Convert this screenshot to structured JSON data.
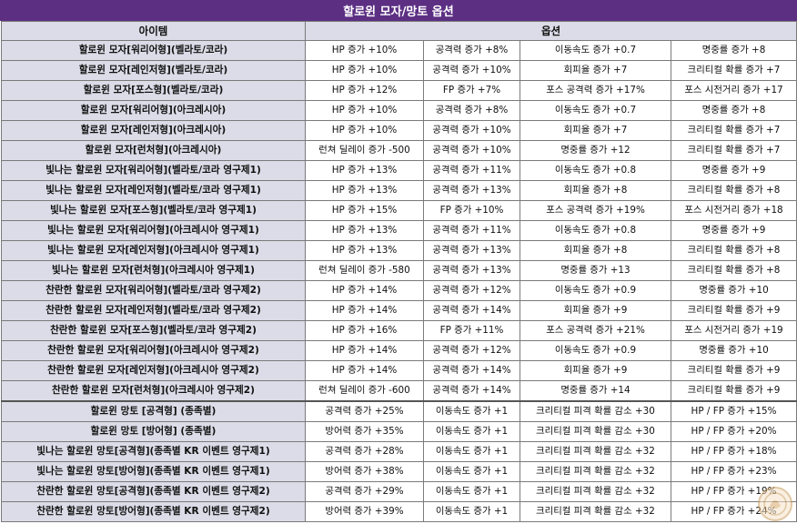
{
  "title": "할로윈 모자/망토 옵션",
  "headers": {
    "item": "아이템",
    "options": "옵션"
  },
  "colors": {
    "title_bg": "#5c2f83",
    "header_bg": "#dcdce8",
    "border": "#7a7a7a"
  },
  "watermark_icon": "stamp-logo",
  "rows": [
    {
      "item": "할로윈 모자[워리어형](벨라토/코라)",
      "options": [
        "HP 증가 +10%",
        "공격력 증가 +8%",
        "이동속도 증가 +0.7",
        "명중률 증가 +8"
      ]
    },
    {
      "item": "할로윈 모자[레인저형](벨라토/코라)",
      "options": [
        "HP 증가 +10%",
        "공격력 증가 +10%",
        "회피율 증가 +7",
        "크리티컬 확률 증가 +7"
      ]
    },
    {
      "item": "할로윈 모자[포스형](벨라토/코라)",
      "options": [
        "HP 증가 +12%",
        "FP 증가 +7%",
        "포스 공격력 증가 +17%",
        "포스 시전거리 증가 +17"
      ]
    },
    {
      "item": "할로윈 모자[워리어형](아크레시아)",
      "options": [
        "HP 증가 +10%",
        "공격력 증가 +8%",
        "이동속도 증가 +0.7",
        "명중률 증가 +8"
      ]
    },
    {
      "item": "할로윈 모자[레인저형](아크레시아)",
      "options": [
        "HP 증가 +10%",
        "공격력 증가 +10%",
        "회피율 증가 +7",
        "크리티컬 확률 증가 +7"
      ]
    },
    {
      "item": "할로윈 모자[런처형](아크레시아)",
      "options": [
        "런쳐 딜레이 증가 -500",
        "공격력 증가 +10%",
        "명중률 증가 +12",
        "크리티컬 확률 증가 +7"
      ]
    },
    {
      "item": "빛나는 할로윈 모자[워리어형](벨라토/코라 영구제1)",
      "options": [
        "HP 증가 +13%",
        "공격력 증가 +11%",
        "이동속도 증가 +0.8",
        "명중률 증가 +9"
      ]
    },
    {
      "item": "빛나는 할로윈 모자[레인저형](벨라토/코라 영구제1)",
      "options": [
        "HP 증가 +13%",
        "공격력 증가 +13%",
        "회피율 증가 +8",
        "크리티컬 확률 증가 +8"
      ]
    },
    {
      "item": "빛나는 할로윈 모자[포스형](벨라토/코라 영구제1)",
      "options": [
        "HP 증가 +15%",
        "FP 증가 +10%",
        "포스 공격력 증가 +19%",
        "포스 시전거리 증가 +18"
      ]
    },
    {
      "item": "빛나는 할로윈 모자[워리어형](아크레시아 영구제1)",
      "options": [
        "HP 증가 +13%",
        "공격력 증가 +11%",
        "이동속도 증가 +0.8",
        "명중률 증가 +9"
      ]
    },
    {
      "item": "빛나는 할로윈 모자[레인저형](아크레시아 영구제1)",
      "options": [
        "HP 증가 +13%",
        "공격력 증가 +13%",
        "회피율 증가 +8",
        "크리티컬 확률 증가 +8"
      ]
    },
    {
      "item": "빛나는 할로윈 모자[런처형](아크레시아 영구제1)",
      "options": [
        "런쳐 딜레이 증가 -580",
        "공격력 증가 +13%",
        "명중률 증가 +13",
        "크리티컬 확률 증가 +8"
      ]
    },
    {
      "item": "찬란한 할로윈 모자[워리어형](벨라토/코라 영구제2)",
      "options": [
        "HP 증가 +14%",
        "공격력 증가 +12%",
        "이동속도 증가 +0.9",
        "명중률 증가 +10"
      ]
    },
    {
      "item": "찬란한 할로윈 모자[레인저형](벨라토/코라 영구제2)",
      "options": [
        "HP 증가 +14%",
        "공격력 증가 +14%",
        "회피율 증가 +9",
        "크리티컬 확률 증가 +9"
      ]
    },
    {
      "item": "찬란한 할로윈 모자[포스형](벨라토/코라 영구제2)",
      "options": [
        "HP 증가 +16%",
        "FP 증가 +11%",
        "포스 공격력 증가 +21%",
        "포스 시전거리 증가 +19"
      ]
    },
    {
      "item": "찬란한 할로윈 모자[워리어형](아크레시아 영구제2)",
      "options": [
        "HP 증가 +14%",
        "공격력 증가 +12%",
        "이동속도 증가 +0.9",
        "명중률 증가 +10"
      ]
    },
    {
      "item": "찬란한 할로윈 모자[레인저형](아크레시아 영구제2)",
      "options": [
        "HP 증가 +14%",
        "공격력 증가 +14%",
        "회피율 증가 +9",
        "크리티컬 확률 증가 +9"
      ]
    },
    {
      "item": "찬란한 할로윈 모자[런처형](아크레시아 영구제2)",
      "options": [
        "런쳐 딜레이 증가 -600",
        "공격력 증가 +14%",
        "명중률 증가 +14",
        "크리티컬 확률 증가 +9"
      ]
    },
    {
      "item": "할로윈 망토 [공격형] (종족별)",
      "options": [
        "공격력 증가 +25%",
        "이동속도 증가 +1",
        "크리티컬 피격 확률 감소 +30",
        "HP / FP 증가 +15%"
      ]
    },
    {
      "item": "할로윈 망토 [방어형] (종족별)",
      "options": [
        "방어력 증가 +35%",
        "이동속도 증가 +1",
        "크리티컬 피격 확률 감소 +30",
        "HP / FP 증가 +20%"
      ]
    },
    {
      "item": "빛나는 할로윈 망토[공격형](종족별 KR 이벤트 영구제1)",
      "options": [
        "공격력 증가 +28%",
        "이동속도 증가 +1",
        "크리티컬 피격 확률 감소 +32",
        "HP / FP 증가 +18%"
      ]
    },
    {
      "item": "빛나는 할로윈 망토[방어형](종족별 KR 이벤트 영구제1)",
      "options": [
        "방어력 증가 +38%",
        "이동속도 증가 +1",
        "크리티컬 피격 확률 감소 +32",
        "HP / FP 증가 +23%"
      ]
    },
    {
      "item": "찬란한 할로윈 망토[공격형](종족별 KR 이벤트 영구제2)",
      "options": [
        "공격력 증가 +29%",
        "이동속도 증가 +1",
        "크리티컬 피격 확률 감소 +32",
        "HP / FP 증가 +19%"
      ]
    },
    {
      "item": "찬란한 할로윈 망토[방어형](종족별 KR 이벤트 영구제2)",
      "options": [
        "방어력 증가 +39%",
        "이동속도 증가 +1",
        "크리티컬 피격 확률 감소 +32",
        "HP / FP 증가 +24%"
      ]
    }
  ]
}
